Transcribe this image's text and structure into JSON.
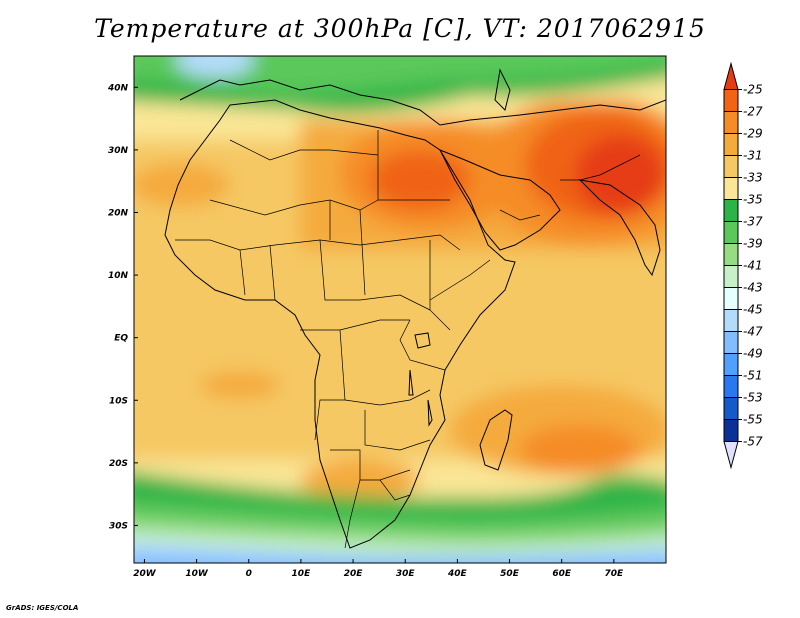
{
  "title": "Temperature at 300hPa [C], VT: 2017062915",
  "footer": "GrADS: IGES/COLA",
  "map": {
    "lon_range": [
      -22,
      80
    ],
    "lat_range": [
      -36,
      45
    ],
    "x_ticks": [
      {
        "lon": -20,
        "label": "20W"
      },
      {
        "lon": -10,
        "label": "10W"
      },
      {
        "lon": 0,
        "label": "0"
      },
      {
        "lon": 10,
        "label": "10E"
      },
      {
        "lon": 20,
        "label": "20E"
      },
      {
        "lon": 30,
        "label": "30E"
      },
      {
        "lon": 40,
        "label": "40E"
      },
      {
        "lon": 50,
        "label": "50E"
      },
      {
        "lon": 60,
        "label": "60E"
      },
      {
        "lon": 70,
        "label": "70E"
      }
    ],
    "y_ticks": [
      {
        "lat": 40,
        "label": "40N"
      },
      {
        "lat": 30,
        "label": "30N"
      },
      {
        "lat": 20,
        "label": "20N"
      },
      {
        "lat": 10,
        "label": "10N"
      },
      {
        "lat": 0,
        "label": "EQ"
      },
      {
        "lat": -10,
        "label": "10S"
      },
      {
        "lat": -20,
        "label": "20S"
      },
      {
        "lat": -30,
        "label": "30S"
      }
    ]
  },
  "colorbar": {
    "labels": [
      "-25",
      "-27",
      "-29",
      "-31",
      "-33",
      "-35",
      "-37",
      "-39",
      "-41",
      "-43",
      "-45",
      "-47",
      "-49",
      "-51",
      "-53",
      "-55",
      "-57"
    ],
    "colors": [
      "#e63c14",
      "#f06414",
      "#f58c28",
      "#f5aa3c",
      "#f5c864",
      "#fae696",
      "#2db446",
      "#5ac85a",
      "#96dc82",
      "#c8f0c8",
      "#e6ffff",
      "#b4dcfa",
      "#82beff",
      "#50a0ff",
      "#2878f0",
      "#145ac8",
      "#0a3296",
      "#08106e",
      "#e0e0ff"
    ]
  },
  "chart_data": {
    "type": "heatmap",
    "variable": "Temperature at 300hPa",
    "units": "C",
    "valid_time": "2017062915",
    "levels": [
      -57,
      -55,
      -53,
      -51,
      -49,
      -47,
      -45,
      -43,
      -41,
      -39,
      -37,
      -35,
      -33,
      -31,
      -29,
      -27,
      -25
    ],
    "extent": {
      "lon": [
        -22,
        80
      ],
      "lat": [
        -36,
        45
      ]
    }
  }
}
